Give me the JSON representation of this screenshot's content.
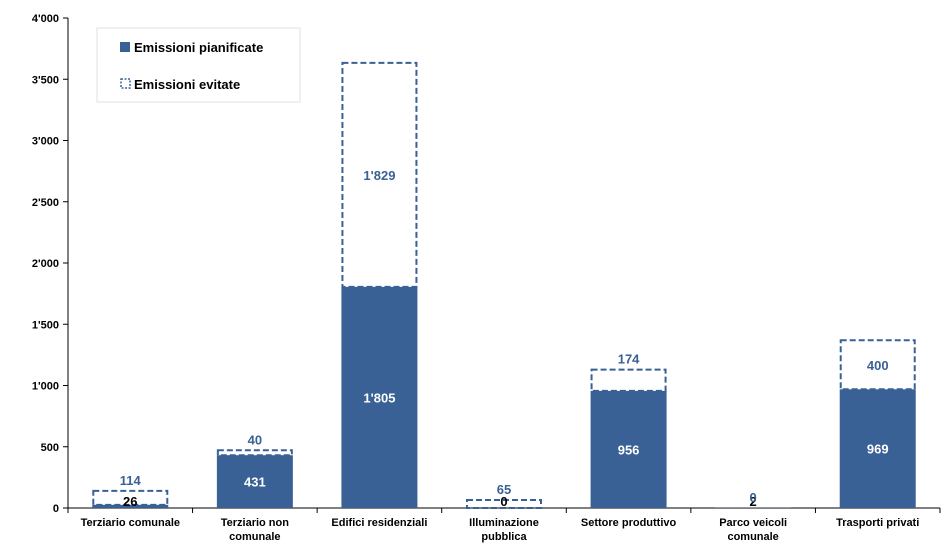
{
  "chart_data": {
    "type": "bar",
    "stacked": true,
    "categories": [
      [
        "Terziario comunale"
      ],
      [
        "Terziario non",
        "comunale"
      ],
      [
        "Edifici residenziali"
      ],
      [
        "Illuminazione",
        "pubblica"
      ],
      [
        "Settore produttivo"
      ],
      [
        "Parco veicoli",
        "comunale"
      ],
      [
        "Trasporti privati"
      ]
    ],
    "series": [
      {
        "name": "Emissioni pianificate",
        "values": [
          26,
          431,
          1805,
          0,
          956,
          2,
          969
        ],
        "labels": [
          "26",
          "431",
          "1'805",
          "0",
          "956",
          "2",
          "969"
        ],
        "color": "#3a6195",
        "style": "solid"
      },
      {
        "name": "Emissioni evitate",
        "values": [
          114,
          40,
          1829,
          65,
          174,
          0,
          400
        ],
        "labels": [
          "114",
          "40",
          "1'829",
          "65",
          "174",
          "0",
          "400"
        ],
        "color": "#3a6195",
        "style": "dashed-outline"
      }
    ],
    "ylim": [
      0,
      4000
    ],
    "yticks": [
      {
        "value": 0,
        "label": "0"
      },
      {
        "value": 500,
        "label": "500"
      },
      {
        "value": 1000,
        "label": "1'000"
      },
      {
        "value": 1500,
        "label": "1'500"
      },
      {
        "value": 2000,
        "label": "2'000"
      },
      {
        "value": 2500,
        "label": "2'500"
      },
      {
        "value": 3000,
        "label": "3'000"
      },
      {
        "value": 3500,
        "label": "3'500"
      },
      {
        "value": 4000,
        "label": "4'000"
      }
    ],
    "grid": false,
    "legend": "top-left",
    "colors": {
      "bar": "#3a6195",
      "label_light": "#ffffff",
      "label_dark": "#000000",
      "label_evitate": "#3a6195",
      "axis": "#000000"
    }
  }
}
